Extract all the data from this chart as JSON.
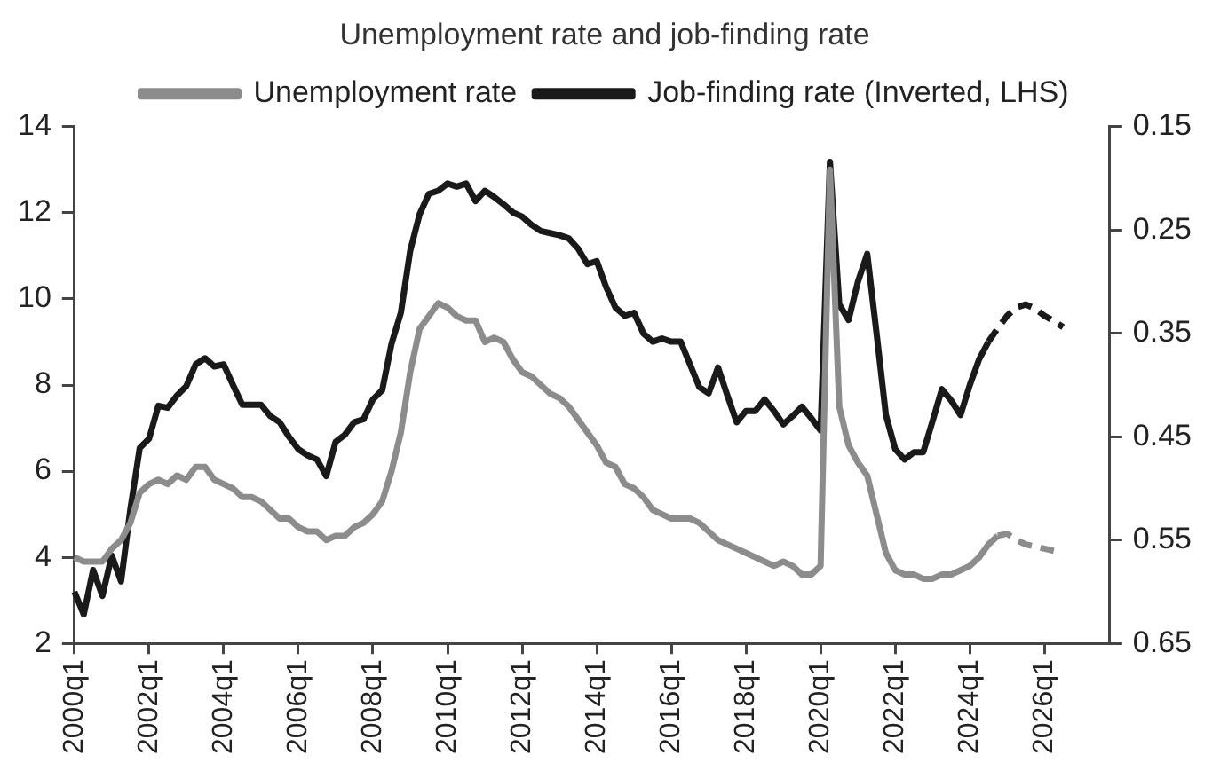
{
  "chart_data": {
    "type": "line",
    "title": "Unemployment rate and job-finding rate",
    "categories": [
      "2000q1",
      null,
      null,
      null,
      null,
      null,
      null,
      null,
      "2002q1",
      null,
      null,
      null,
      null,
      null,
      null,
      null,
      "2004q1",
      null,
      null,
      null,
      null,
      null,
      null,
      null,
      "2006q1",
      null,
      null,
      null,
      null,
      null,
      null,
      null,
      "2008q1",
      null,
      null,
      null,
      null,
      null,
      null,
      null,
      "2010q1",
      null,
      null,
      null,
      null,
      null,
      null,
      null,
      "2012q1",
      null,
      null,
      null,
      null,
      null,
      null,
      null,
      "2014q1",
      null,
      null,
      null,
      null,
      null,
      null,
      null,
      "2016q1",
      null,
      null,
      null,
      null,
      null,
      null,
      null,
      "2018q1",
      null,
      null,
      null,
      null,
      null,
      null,
      null,
      "2020q1",
      null,
      null,
      null,
      null,
      null,
      null,
      null,
      "2022q1",
      null,
      null,
      null,
      null,
      null,
      null,
      null,
      "2024q1",
      null,
      null,
      null,
      null,
      null,
      null,
      null,
      "2026q1",
      null,
      null,
      null,
      null,
      null,
      null,
      null
    ],
    "series": [
      {
        "name": "Unemployment rate",
        "color": "#8c8c8c",
        "values": [
          4.0,
          3.9,
          3.9,
          3.9,
          4.2,
          4.4,
          4.8,
          5.5,
          5.7,
          5.8,
          5.7,
          5.9,
          5.8,
          6.1,
          6.1,
          5.8,
          5.7,
          5.6,
          5.4,
          5.4,
          5.3,
          5.1,
          4.9,
          4.9,
          4.7,
          4.6,
          4.6,
          4.4,
          4.5,
          4.5,
          4.7,
          4.8,
          5.0,
          5.3,
          6.0,
          6.9,
          8.3,
          9.3,
          9.6,
          9.9,
          9.8,
          9.6,
          9.5,
          9.5,
          9.0,
          9.1,
          9.0,
          8.6,
          8.3,
          8.2,
          8.0,
          7.8,
          7.7,
          7.5,
          7.2,
          6.9,
          6.6,
          6.2,
          6.1,
          5.7,
          5.6,
          5.4,
          5.1,
          5.0,
          4.9,
          4.9,
          4.9,
          4.8,
          4.6,
          4.4,
          4.3,
          4.2,
          4.1,
          4.0,
          3.9,
          3.8,
          3.9,
          3.8,
          3.6,
          3.6,
          3.8,
          13.0,
          7.5,
          6.6,
          6.2,
          5.9,
          5.0,
          4.1,
          3.7,
          3.6,
          3.6,
          3.5,
          3.5,
          3.6,
          3.6,
          3.7,
          3.8,
          4.0,
          4.3,
          4.5,
          null,
          null,
          null,
          null,
          null,
          null,
          null,
          null,
          null,
          null,
          null,
          null
        ]
      },
      {
        "color": "#8c8c8c",
        "line_style": "dashed",
        "values": [
          null,
          null,
          null,
          null,
          null,
          null,
          null,
          null,
          null,
          null,
          null,
          null,
          null,
          null,
          null,
          null,
          null,
          null,
          null,
          null,
          null,
          null,
          null,
          null,
          null,
          null,
          null,
          null,
          null,
          null,
          null,
          null,
          null,
          null,
          null,
          null,
          null,
          null,
          null,
          null,
          null,
          null,
          null,
          null,
          null,
          null,
          null,
          null,
          null,
          null,
          null,
          null,
          null,
          null,
          null,
          null,
          null,
          null,
          null,
          null,
          null,
          null,
          null,
          null,
          null,
          null,
          null,
          null,
          null,
          null,
          null,
          null,
          null,
          null,
          null,
          null,
          null,
          null,
          null,
          null,
          null,
          null,
          null,
          null,
          null,
          null,
          null,
          null,
          null,
          null,
          null,
          null,
          null,
          null,
          null,
          null,
          null,
          null,
          null,
          4.5,
          4.55,
          4.4,
          4.3,
          4.25,
          4.2,
          4.15,
          null,
          null,
          null,
          null,
          null,
          null
        ]
      },
      {
        "name": "Job-finding rate (Inverted, LHS)",
        "color": "#1a1a1a",
        "axis": "y2",
        "values": [
          0.6,
          0.622,
          0.579,
          0.604,
          0.565,
          0.59,
          0.52,
          0.461,
          0.452,
          0.42,
          0.422,
          0.41,
          0.401,
          0.38,
          0.374,
          0.382,
          0.38,
          0.4,
          0.419,
          0.419,
          0.419,
          0.43,
          0.436,
          0.45,
          0.462,
          0.468,
          0.472,
          0.488,
          0.455,
          0.448,
          0.436,
          0.433,
          0.414,
          0.405,
          0.36,
          0.33,
          0.27,
          0.235,
          0.215,
          0.212,
          0.205,
          0.208,
          0.205,
          0.222,
          0.212,
          0.218,
          0.225,
          0.233,
          0.237,
          0.245,
          0.251,
          0.253,
          0.255,
          0.258,
          0.268,
          0.283,
          0.28,
          0.305,
          0.325,
          0.333,
          0.33,
          0.35,
          0.358,
          0.355,
          0.358,
          0.358,
          0.38,
          0.402,
          0.408,
          0.383,
          0.41,
          0.436,
          0.425,
          0.425,
          0.414,
          0.425,
          0.438,
          0.43,
          0.421,
          0.432,
          0.444,
          0.184,
          0.322,
          0.337,
          0.3,
          0.273,
          0.35,
          0.429,
          0.462,
          0.472,
          0.465,
          0.465,
          0.435,
          0.404,
          0.415,
          0.429,
          0.4,
          0.375,
          0.358,
          null,
          null,
          null,
          null,
          null,
          null,
          null,
          null,
          null,
          null,
          null,
          null,
          null
        ]
      },
      {
        "color": "#1a1a1a",
        "axis": "y2",
        "line_style": "dashed",
        "values": [
          null,
          null,
          null,
          null,
          null,
          null,
          null,
          null,
          null,
          null,
          null,
          null,
          null,
          null,
          null,
          null,
          null,
          null,
          null,
          null,
          null,
          null,
          null,
          null,
          null,
          null,
          null,
          null,
          null,
          null,
          null,
          null,
          null,
          null,
          null,
          null,
          null,
          null,
          null,
          null,
          null,
          null,
          null,
          null,
          null,
          null,
          null,
          null,
          null,
          null,
          null,
          null,
          null,
          null,
          null,
          null,
          null,
          null,
          null,
          null,
          null,
          null,
          null,
          null,
          null,
          null,
          null,
          null,
          null,
          null,
          null,
          null,
          null,
          null,
          null,
          null,
          null,
          null,
          null,
          null,
          null,
          null,
          null,
          null,
          null,
          null,
          null,
          null,
          null,
          null,
          null,
          null,
          null,
          null,
          null,
          null,
          null,
          null,
          0.358,
          0.345,
          0.333,
          0.325,
          0.322,
          0.326,
          0.333,
          0.338,
          0.344,
          null,
          null,
          null,
          null,
          null
        ]
      }
    ],
    "ylim": [
      2,
      14
    ],
    "yticks": [
      2,
      4,
      6,
      8,
      10,
      12,
      14
    ],
    "y2lim": [
      0.65,
      0.15
    ],
    "y2ticks": [
      0.15,
      0.25,
      0.35,
      0.45,
      0.55,
      0.65
    ],
    "grid": false,
    "legend": "top"
  }
}
